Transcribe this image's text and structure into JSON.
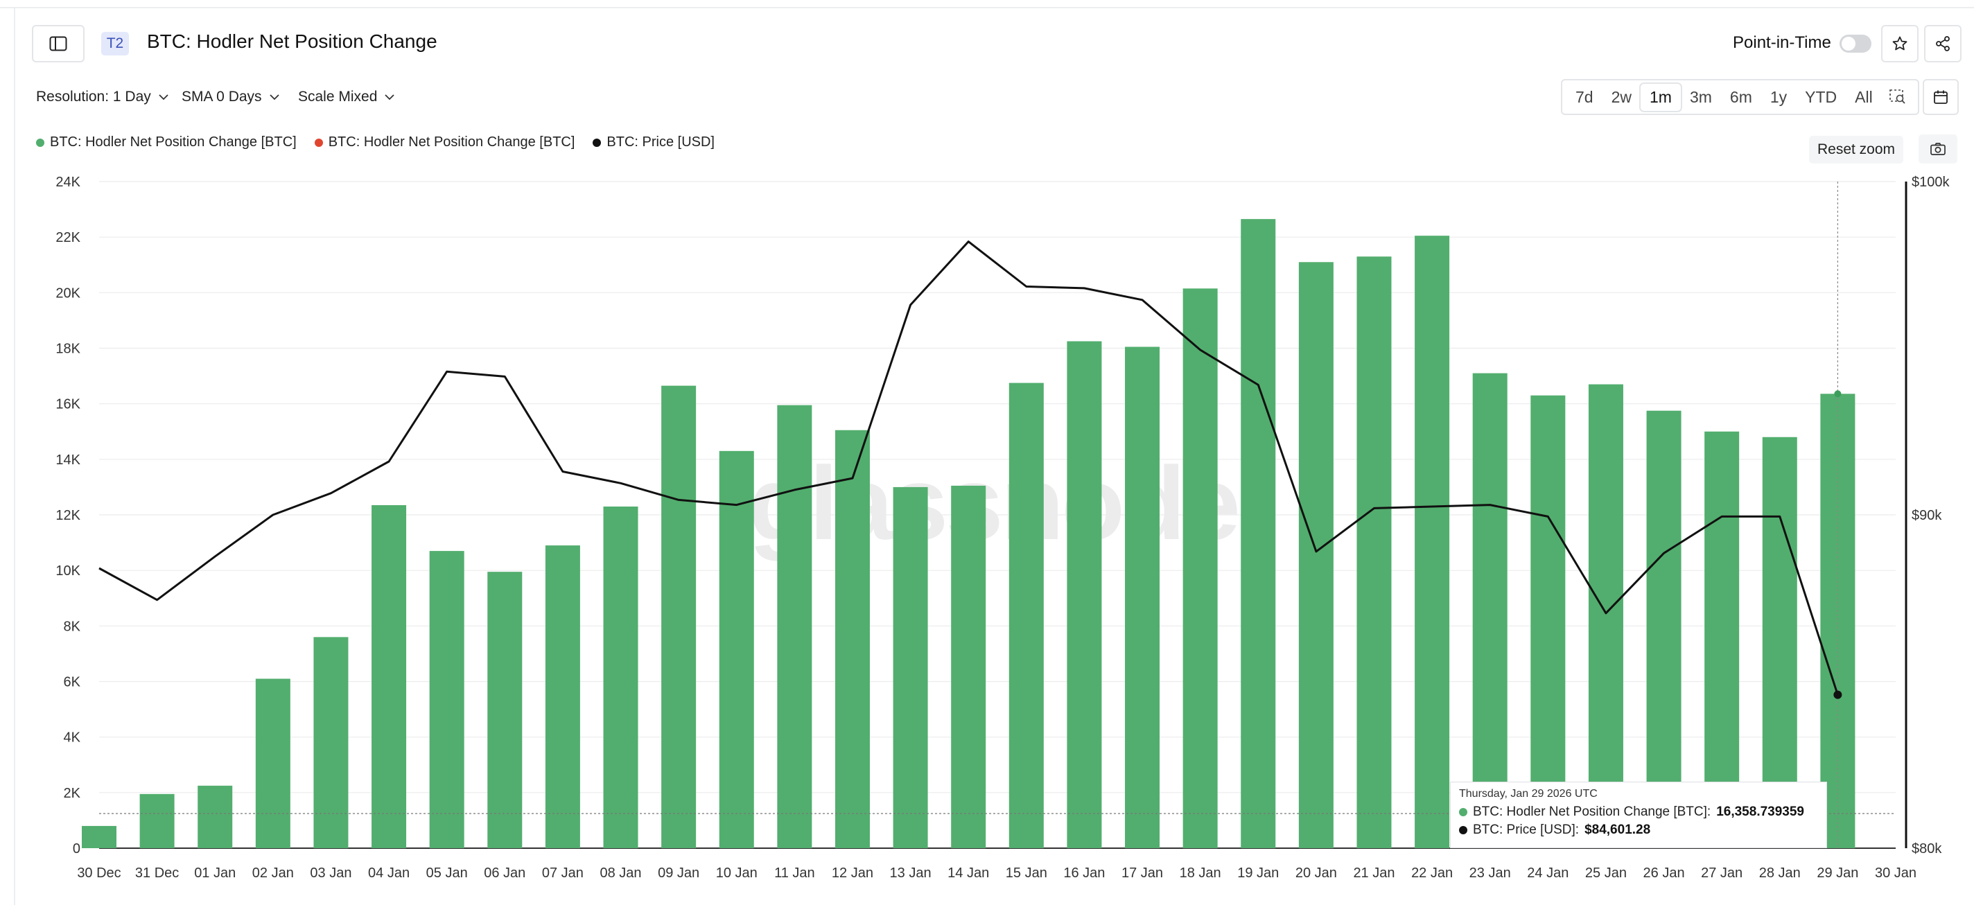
{
  "header": {
    "tier_badge": "T2",
    "title": "BTC: Hodler Net Position Change",
    "point_in_time_label": "Point-in-Time"
  },
  "controls": {
    "resolution": "Resolution: 1 Day",
    "sma": "SMA 0 Days",
    "scale": "Scale Mixed",
    "ranges": [
      "7d",
      "2w",
      "1m",
      "3m",
      "6m",
      "1y",
      "YTD",
      "All"
    ],
    "active_range": "1m",
    "reset_zoom": "Reset zoom"
  },
  "watermark": "glassnode",
  "colors": {
    "positive": "#52ae6e",
    "negative": "#e0462f",
    "price": "#111111"
  },
  "tooltip": {
    "date": "Thursday, Jan 29 2026 UTC",
    "series1_label": "BTC: Hodler Net Position Change [BTC]:",
    "series1_value": "16,358.739359",
    "series2_label": "BTC: Price [USD]:",
    "series2_value": "$84,601.28"
  },
  "chart_data": {
    "type": "bar",
    "title": "BTC: Hodler Net Position Change",
    "legend": [
      {
        "name": "BTC: Hodler Net Position Change [BTC]",
        "color": "#52ae6e"
      },
      {
        "name": "BTC: Hodler Net Position Change [BTC]",
        "color": "#e0462f"
      },
      {
        "name": "BTC: Price [USD]",
        "color": "#111111"
      }
    ],
    "categories": [
      "30 Dec",
      "31 Dec",
      "01 Jan",
      "02 Jan",
      "03 Jan",
      "04 Jan",
      "05 Jan",
      "06 Jan",
      "07 Jan",
      "08 Jan",
      "09 Jan",
      "10 Jan",
      "11 Jan",
      "12 Jan",
      "13 Jan",
      "14 Jan",
      "15 Jan",
      "16 Jan",
      "17 Jan",
      "18 Jan",
      "19 Jan",
      "20 Jan",
      "21 Jan",
      "22 Jan",
      "23 Jan",
      "24 Jan",
      "25 Jan",
      "26 Jan",
      "27 Jan",
      "28 Jan",
      "29 Jan",
      "30 Jan"
    ],
    "series": [
      {
        "name": "BTC: Hodler Net Position Change [BTC]",
        "axis": "left",
        "type": "bar",
        "values": [
          800,
          1950,
          2250,
          6100,
          7600,
          12350,
          10700,
          9950,
          10900,
          12300,
          16650,
          14300,
          15950,
          15050,
          13000,
          13050,
          16750,
          18250,
          18050,
          20150,
          22650,
          21100,
          21300,
          22050,
          17100,
          16300,
          16700,
          15750,
          15000,
          14800,
          16358.74,
          null
        ]
      },
      {
        "name": "BTC: Price [USD]",
        "axis": "right",
        "type": "line",
        "values": [
          88400,
          87450,
          88750,
          90000,
          90650,
          91600,
          94300,
          94150,
          91300,
          90950,
          90450,
          90300,
          90750,
          91100,
          96300,
          98200,
          96850,
          96800,
          96450,
          94950,
          93900,
          88900,
          90200,
          90250,
          90300,
          89950,
          87050,
          88850,
          89950,
          89950,
          84601.28,
          null
        ]
      }
    ],
    "ylim_left": [
      0,
      24000
    ],
    "yticks_left": [
      "0",
      "2K",
      "4K",
      "6K",
      "8K",
      "10K",
      "12K",
      "14K",
      "16K",
      "18K",
      "20K",
      "22K",
      "24K"
    ],
    "ylim_right": [
      80000,
      100000
    ],
    "yticks_right": [
      "$80k",
      "$90k",
      "$100k"
    ],
    "xlabel": "",
    "ylabel": "",
    "grid": true,
    "hover_category": "29 Jan"
  }
}
